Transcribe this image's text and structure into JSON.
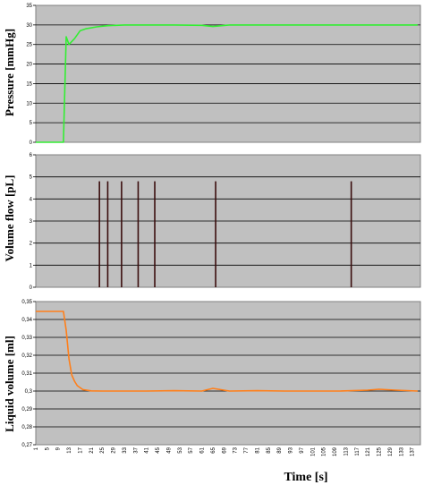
{
  "chart_data": [
    {
      "type": "line",
      "ylabel": "Pressure [mmHg]",
      "xlabel": "",
      "ylim": [
        0,
        35
      ],
      "yticks": [
        "0",
        "5",
        "10",
        "15",
        "20",
        "25",
        "30",
        "35"
      ],
      "grid": true,
      "colors": {
        "line": "#33ee33",
        "plot_bg": "#c0c0c0",
        "grid": "#000000"
      },
      "series": [
        {
          "x": [
            1,
            11,
            12,
            13,
            15,
            17,
            19,
            23,
            27,
            33,
            41,
            51,
            61,
            65,
            71,
            81,
            91,
            101,
            111,
            121,
            131,
            139
          ],
          "y": [
            0,
            0,
            27,
            25,
            26.5,
            28.5,
            29,
            29.5,
            29.8,
            30,
            30,
            30,
            29.9,
            29.6,
            30,
            30,
            30,
            30,
            30,
            30,
            30,
            30
          ]
        }
      ]
    },
    {
      "type": "bar",
      "ylabel": "Volume flow [pL]",
      "xlabel": "",
      "ylim": [
        0,
        6
      ],
      "yticks": [
        "0",
        "1",
        "2",
        "3",
        "4",
        "5",
        "6"
      ],
      "grid": true,
      "colors": {
        "bar": "#3a0d0d",
        "plot_bg": "#c0c0c0",
        "grid": "#000000"
      },
      "x": [
        24,
        27,
        32,
        38,
        44,
        66,
        115
      ],
      "values": [
        4.8,
        4.8,
        4.8,
        4.8,
        4.8,
        4.8,
        4.8
      ]
    },
    {
      "type": "line",
      "ylabel": "Liquid volume [ml]",
      "xlabel": "Time [s]",
      "ylim": [
        0.27,
        0.35
      ],
      "yticks": [
        "0,27",
        "0,28",
        "0,29",
        "0,3",
        "0,31",
        "0,32",
        "0,33",
        "0,34",
        "0,35"
      ],
      "grid": true,
      "colors": {
        "line": "#ff7f1a",
        "plot_bg": "#c0c0c0",
        "grid": "#000000"
      },
      "series": [
        {
          "x": [
            1,
            11,
            12,
            13,
            14,
            15,
            16,
            18,
            21,
            25,
            31,
            41,
            51,
            61,
            65,
            71,
            81,
            91,
            101,
            111,
            121,
            125,
            131,
            139
          ],
          "y": [
            0.3445,
            0.3445,
            0.334,
            0.318,
            0.309,
            0.3055,
            0.303,
            0.3008,
            0.3001,
            0.3,
            0.3,
            0.3,
            0.3002,
            0.3,
            0.3015,
            0.3,
            0.3002,
            0.3,
            0.3,
            0.3,
            0.3005,
            0.301,
            0.3005,
            0.3
          ]
        }
      ],
      "categories": [
        "1",
        "5",
        "9",
        "13",
        "17",
        "21",
        "25",
        "29",
        "33",
        "37",
        "41",
        "45",
        "49",
        "53",
        "57",
        "61",
        "65",
        "69",
        "73",
        "77",
        "81",
        "85",
        "89",
        "93",
        "97",
        "101",
        "105",
        "109",
        "113",
        "117",
        "121",
        "125",
        "129",
        "133",
        "137"
      ]
    }
  ]
}
